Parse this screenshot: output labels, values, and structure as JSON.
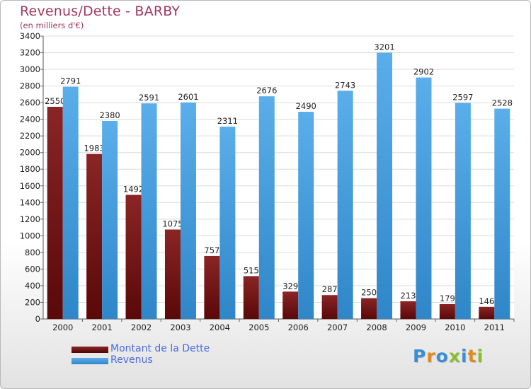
{
  "title": "Revenus/Dette - BARBY",
  "subtitle": "(en milliers d'€)",
  "logo": {
    "text": "Proxiti",
    "letter_colors": [
      "#3a8ed6",
      "#e2891e",
      "#3a8ed6",
      "#8bbe2e",
      "#3a8ed6",
      "#e2891e",
      "#8bbe2e"
    ]
  },
  "colors": {
    "dette": "#7a1515",
    "revenus": "#3d99dc",
    "title": "#a03a5a",
    "legend_text": "#4d6ae0"
  },
  "chart_data": {
    "type": "bar",
    "title": "Revenus/Dette - BARBY",
    "subtitle": "(en milliers d'€)",
    "categories": [
      "2000",
      "2001",
      "2002",
      "2003",
      "2004",
      "2005",
      "2006",
      "2007",
      "2008",
      "2009",
      "2010",
      "2011"
    ],
    "series": [
      {
        "name": "Montant de la Dette",
        "color": "#7a1515",
        "values": [
          2550,
          1983,
          1492,
          1075,
          757,
          515,
          329,
          287,
          250,
          213,
          179,
          146
        ]
      },
      {
        "name": "Revenus",
        "color": "#3d99dc",
        "values": [
          2791,
          2380,
          2591,
          2601,
          2311,
          2676,
          2490,
          2743,
          3201,
          2902,
          2597,
          2528
        ]
      }
    ],
    "ylim": [
      0,
      3400
    ],
    "yticks": [
      0,
      200,
      400,
      600,
      800,
      1000,
      1200,
      1400,
      1600,
      1800,
      2000,
      2200,
      2400,
      2600,
      2800,
      3000,
      3200,
      3400
    ],
    "grid": true,
    "legend_position": "bottom-left"
  }
}
